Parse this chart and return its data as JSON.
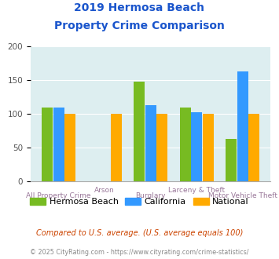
{
  "title_line1": "2019 Hermosa Beach",
  "title_line2": "Property Crime Comparison",
  "categories": [
    "All Property Crime",
    "Arson",
    "Burglary",
    "Larceny & Theft",
    "Motor Vehicle Theft"
  ],
  "hermosa_beach": [
    110,
    0,
    148,
    109,
    63
  ],
  "california": [
    110,
    0,
    113,
    103,
    163
  ],
  "national": [
    100,
    100,
    100,
    100,
    100
  ],
  "color_hermosa": "#77bb22",
  "color_california": "#3399ff",
  "color_national": "#ffaa00",
  "ylim": [
    0,
    200
  ],
  "yticks": [
    0,
    50,
    100,
    150,
    200
  ],
  "background_color": "#ddeef0",
  "title_color": "#1a55cc",
  "xlabel_color": "#997799",
  "legend_labels": [
    "Hermosa Beach",
    "California",
    "National"
  ],
  "footnote1": "Compared to U.S. average. (U.S. average equals 100)",
  "footnote2": "© 2025 CityRating.com - https://www.cityrating.com/crime-statistics/",
  "footnote1_color": "#cc4400",
  "footnote2_color": "#888888",
  "footnote2_link_color": "#3366cc"
}
